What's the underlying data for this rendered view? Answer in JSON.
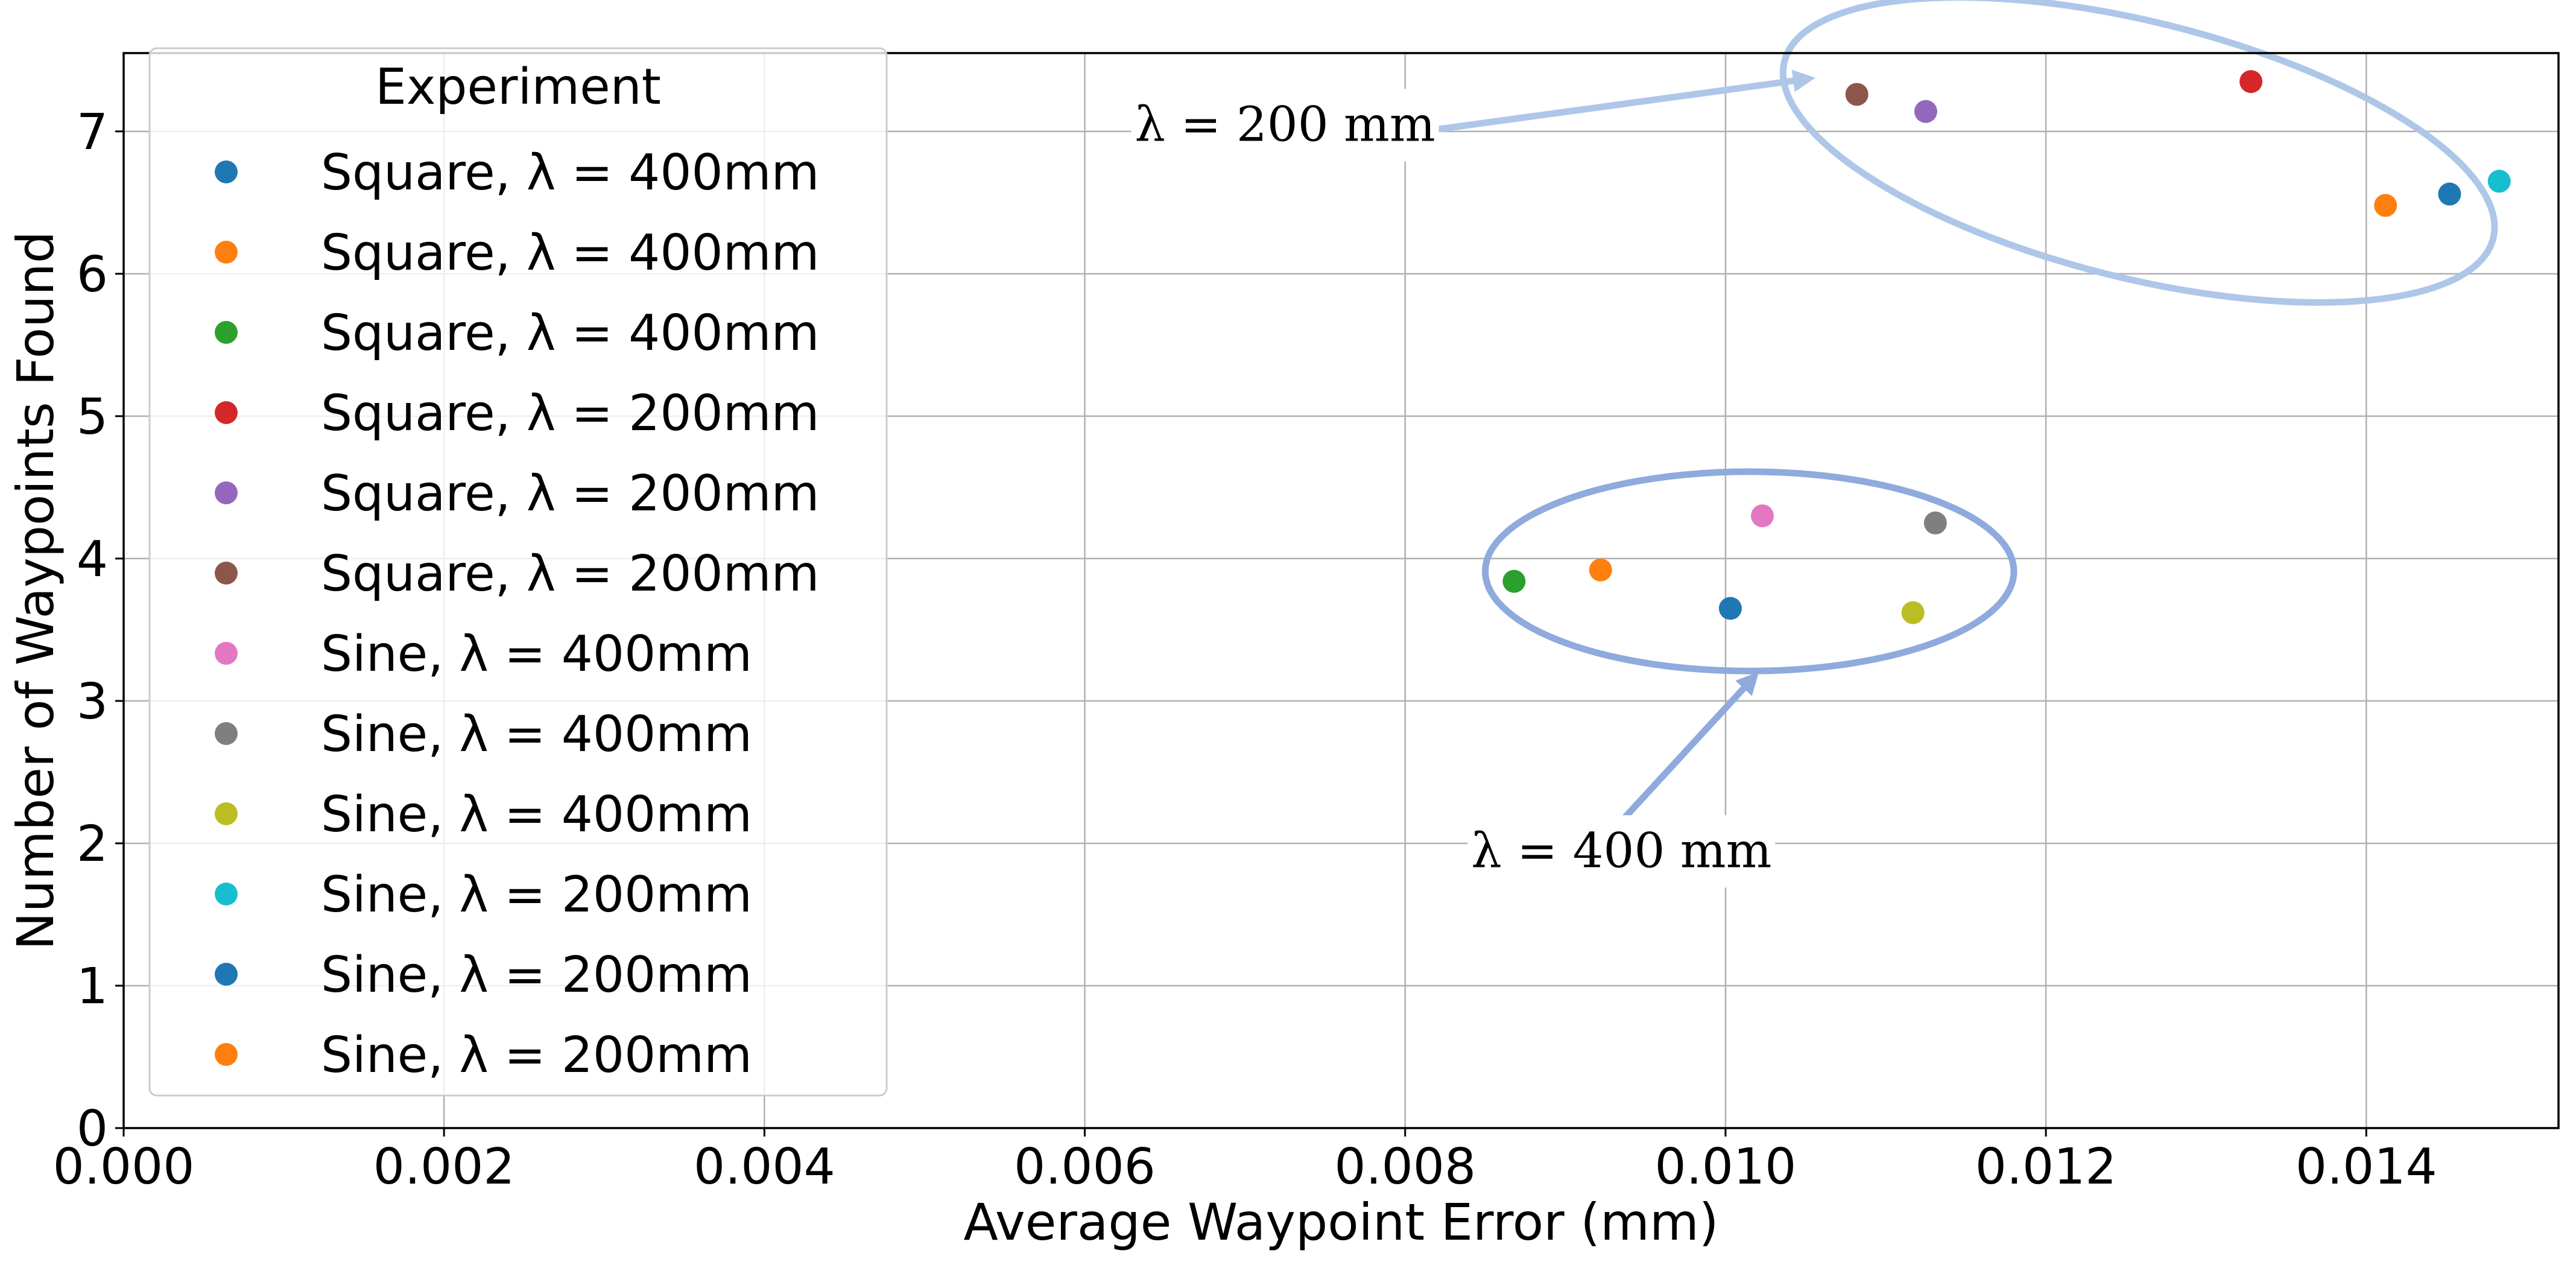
{
  "chart_data": {
    "type": "scatter",
    "xlabel": "Average Waypoint Error (mm)",
    "ylabel": "Number of Waypoints Found",
    "xlim": [
      0.0,
      0.0152
    ],
    "ylim": [
      0,
      7.55
    ],
    "xticks": [
      0.0,
      0.002,
      0.004,
      0.006,
      0.008,
      0.01,
      0.012,
      0.014
    ],
    "xtick_labels": [
      "0.000",
      "0.002",
      "0.004",
      "0.006",
      "0.008",
      "0.010",
      "0.012",
      "0.014"
    ],
    "yticks": [
      0,
      1,
      2,
      3,
      4,
      5,
      6,
      7
    ],
    "ytick_labels": [
      "0",
      "1",
      "2",
      "3",
      "4",
      "5",
      "6",
      "7"
    ],
    "grid": true,
    "legend": {
      "title": "Experiment",
      "placement": "top-left"
    },
    "series": [
      {
        "name": "Square, λ = 400mm",
        "color": "#1f77b4",
        "x": [
          0.01003
        ],
        "y": [
          3.65
        ]
      },
      {
        "name": "Square, λ = 400mm",
        "color": "#ff7f0e",
        "x": [
          0.00922
        ],
        "y": [
          3.92
        ]
      },
      {
        "name": "Square, λ = 400mm",
        "color": "#2ca02c",
        "x": [
          0.00868
        ],
        "y": [
          3.84
        ]
      },
      {
        "name": "Square, λ = 200mm",
        "color": "#d62728",
        "x": [
          0.01328
        ],
        "y": [
          7.35
        ]
      },
      {
        "name": "Square, λ = 200mm",
        "color": "#9467bd",
        "x": [
          0.01125
        ],
        "y": [
          7.14
        ]
      },
      {
        "name": "Square, λ = 200mm",
        "color": "#8c564b",
        "x": [
          0.01082
        ],
        "y": [
          7.26
        ]
      },
      {
        "name": "Sine, λ = 400mm",
        "color": "#e377c2",
        "x": [
          0.01023
        ],
        "y": [
          4.3
        ]
      },
      {
        "name": "Sine, λ = 400mm",
        "color": "#7f7f7f",
        "x": [
          0.01131
        ],
        "y": [
          4.25
        ]
      },
      {
        "name": "Sine, λ = 400mm",
        "color": "#bcbd22",
        "x": [
          0.01117
        ],
        "y": [
          3.62
        ]
      },
      {
        "name": "Sine, λ = 200mm",
        "color": "#17becf",
        "x": [
          0.01483
        ],
        "y": [
          6.65
        ]
      },
      {
        "name": "Sine, λ = 200mm",
        "color": "#1f77b4",
        "x": [
          0.01452
        ],
        "y": [
          6.56
        ]
      },
      {
        "name": "Sine, λ = 200mm",
        "color": "#ff7f0e",
        "x": [
          0.01412
        ],
        "y": [
          6.48
        ]
      }
    ],
    "annotations": [
      {
        "text": "λ = 200 mm",
        "color": "#aec7e8",
        "ellipse_center": [
          0.01258,
          6.87
        ],
        "ellipse_radii": [
          0.00228,
          0.9
        ],
        "ellipse_rotation_deg": 14,
        "text_at": [
          0.00725,
          6.95
        ],
        "arrow_from": [
          0.00817,
          7.01
        ],
        "arrow_to": [
          0.01052,
          7.37
        ]
      },
      {
        "text": "λ = 400 mm",
        "color": "#8faadc",
        "ellipse_center": [
          0.01015,
          3.91
        ],
        "ellipse_radii": [
          0.00165,
          0.7
        ],
        "ellipse_rotation_deg": 0,
        "text_at": [
          0.00935,
          1.85
        ],
        "arrow_from": [
          0.00937,
          2.18
        ],
        "arrow_to": [
          0.01018,
          3.17
        ]
      }
    ]
  }
}
